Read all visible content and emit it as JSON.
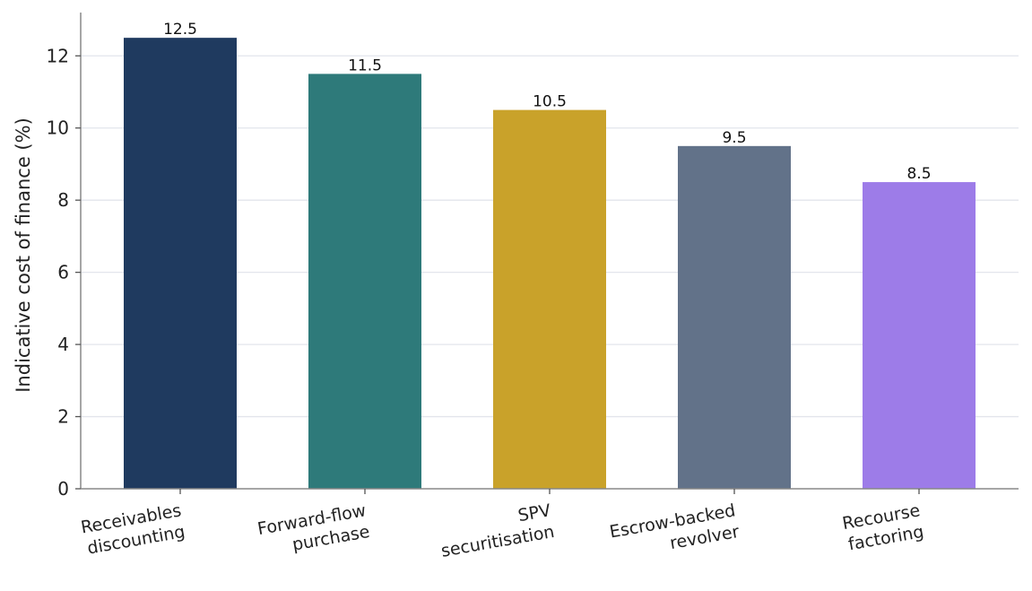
{
  "chart_data": {
    "type": "bar",
    "categories": [
      "Receivables\ndiscounting",
      "Forward-flow\npurchase",
      "SPV\nsecuritisation",
      "Escrow-backed\nrevolver",
      "Recourse\nfactoring"
    ],
    "values": [
      12.5,
      11.5,
      10.5,
      9.5,
      8.5
    ],
    "data_labels": [
      "12.5",
      "11.5",
      "10.5",
      "9.5",
      "8.5"
    ],
    "colors": [
      "#1f3a5f",
      "#2e7a7a",
      "#c9a22a",
      "#627289",
      "#9d7ce8"
    ],
    "title": "",
    "xlabel": "",
    "ylabel": "Indicative cost of finance (%)",
    "ylim": [
      0,
      13.2
    ],
    "yticks": [
      0,
      2,
      4,
      6,
      8,
      10,
      12
    ],
    "ytick_labels": [
      "0",
      "2",
      "4",
      "6",
      "8",
      "10",
      "12"
    ],
    "grid": true,
    "grid_axis": "y",
    "legend": "none"
  }
}
